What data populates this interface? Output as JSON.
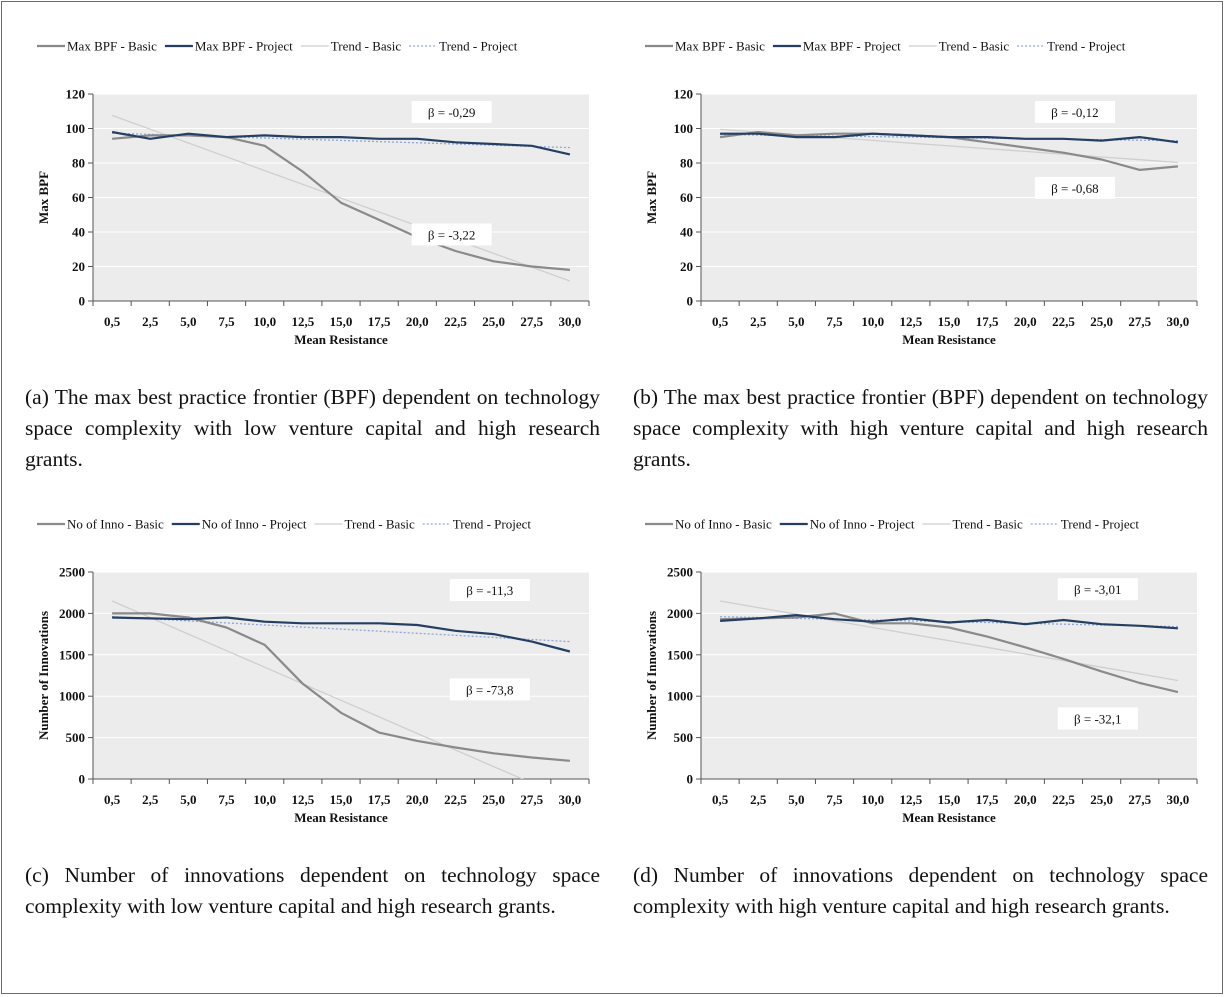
{
  "chart_data": [
    {
      "id": "a",
      "type": "line",
      "caption": "(a) The max best practice frontier (BPF) dependent on technology space complexity with low venture capital and high research grants.",
      "xlabel": "Mean Resistance",
      "ylabel": "Max BPF",
      "categories": [
        "0,5",
        "2,5",
        "5,0",
        "7,5",
        "10,0",
        "12,5",
        "15,0",
        "17,5",
        "20,0",
        "22,5",
        "25,0",
        "27,5",
        "30,0"
      ],
      "ylim": [
        0,
        120
      ],
      "yticks": [
        0,
        20,
        40,
        60,
        80,
        100,
        120
      ],
      "yticklabels": [
        "0",
        "20",
        "40",
        "60",
        "80",
        "100",
        "120"
      ],
      "grid": true,
      "legend_position": "top",
      "series": [
        {
          "name": "Max BPF - Basic",
          "style": "basic",
          "color": "#8a8a8a",
          "values": [
            94,
            96,
            96,
            95,
            90,
            75,
            57,
            47,
            37,
            29,
            23,
            20,
            18
          ]
        },
        {
          "name": "Max BPF - Project",
          "style": "project",
          "color": "#253f63",
          "values": [
            98,
            94,
            97,
            95,
            96,
            95,
            95,
            94,
            94,
            92,
            91,
            90,
            85
          ]
        },
        {
          "name": "Trend - Basic",
          "style": "trend-basic",
          "color": "#cfcfcf",
          "values": [
            107.6,
            99.6,
            91.6,
            83.6,
            75.6,
            67.6,
            59.6,
            51.6,
            43.6,
            35.6,
            27.6,
            19.6,
            11.6
          ]
        },
        {
          "name": "Trend - Project",
          "style": "trend-project",
          "color": "#8fa6d6",
          "values": [
            97.3,
            96.6,
            95.9,
            95.2,
            94.5,
            93.8,
            93.1,
            92.4,
            91.7,
            91.0,
            90.3,
            89.6,
            88.9
          ]
        }
      ],
      "annotations": [
        {
          "text": "β = -0,29",
          "at_value": 109,
          "col": 9.4
        },
        {
          "text": "β = -3,22",
          "at_value": 38,
          "col": 9.4
        }
      ]
    },
    {
      "id": "b",
      "type": "line",
      "caption": "(b) The max best practice frontier (BPF) dependent on technology space complexity with high venture capital and high research grants.",
      "xlabel": "Mean Resistance",
      "ylabel": "Max BPF",
      "categories": [
        "0,5",
        "2,5",
        "5,0",
        "7,5",
        "10,0",
        "12,5",
        "15,0",
        "17,5",
        "20,0",
        "22,5",
        "25,0",
        "27,5",
        "30,0"
      ],
      "ylim": [
        0,
        120
      ],
      "yticks": [
        0,
        20,
        40,
        60,
        80,
        100,
        120
      ],
      "yticklabels": [
        "0",
        "20",
        "40",
        "60",
        "80",
        "100",
        "120"
      ],
      "grid": true,
      "legend_position": "top",
      "series": [
        {
          "name": "Max BPF - Basic",
          "style": "basic",
          "color": "#8a8a8a",
          "values": [
            95,
            98,
            96,
            97,
            97,
            96,
            95,
            92,
            89,
            86,
            82,
            76,
            78
          ]
        },
        {
          "name": "Max BPF - Project",
          "style": "project",
          "color": "#253f63",
          "values": [
            97,
            97,
            95,
            95,
            97,
            96,
            95,
            95,
            94,
            94,
            93,
            95,
            92
          ]
        },
        {
          "name": "Trend - Basic",
          "style": "trend-basic",
          "color": "#cfcfcf",
          "values": [
            99.5,
            97.9,
            96.3,
            94.7,
            93.1,
            91.5,
            89.9,
            88.3,
            86.7,
            85.1,
            83.5,
            81.9,
            80.3
          ]
        },
        {
          "name": "Trend - Project",
          "style": "trend-project",
          "color": "#8fa6d6",
          "values": [
            96.5,
            96.2,
            95.9,
            95.6,
            95.3,
            95.0,
            94.7,
            94.4,
            94.1,
            93.8,
            93.5,
            93.2,
            92.9
          ]
        }
      ],
      "annotations": [
        {
          "text": "β = -0,12",
          "at_value": 109,
          "col": 9.8
        },
        {
          "text": "β = -0,68",
          "at_value": 65,
          "col": 9.8
        }
      ]
    },
    {
      "id": "c",
      "type": "line",
      "caption": "(c) Number of innovations dependent on technology space complexity with low venture capital and high research grants.",
      "xlabel": "Mean Resistance",
      "ylabel": "Number of Innovations",
      "categories": [
        "0,5",
        "2,5",
        "5,0",
        "7,5",
        "10,0",
        "12,5",
        "15,0",
        "17,5",
        "20,0",
        "22,5",
        "25,0",
        "27,5",
        "30,0"
      ],
      "ylim": [
        0,
        2500
      ],
      "yticks": [
        0,
        500,
        1000,
        1500,
        2000,
        2500
      ],
      "yticklabels": [
        "0",
        "500",
        "1000",
        "1500",
        "2000",
        "2500"
      ],
      "grid": true,
      "legend_position": "top",
      "series": [
        {
          "name": "No of Inno - Basic",
          "style": "basic",
          "color": "#8a8a8a",
          "values": [
            2000,
            2000,
            1950,
            1830,
            1620,
            1150,
            800,
            560,
            460,
            380,
            310,
            260,
            220
          ]
        },
        {
          "name": "No of Inno - Project",
          "style": "project",
          "color": "#253f63",
          "values": [
            1950,
            1940,
            1930,
            1950,
            1900,
            1880,
            1880,
            1880,
            1860,
            1790,
            1750,
            1660,
            1540
          ]
        },
        {
          "name": "Trend - Basic",
          "style": "trend-basic",
          "color": "#cfcfcf",
          "values": [
            2150,
            1950,
            1750,
            1550,
            1350,
            1150,
            950,
            750,
            550,
            350,
            150,
            -50,
            -250
          ]
        },
        {
          "name": "Trend - Project",
          "style": "trend-project",
          "color": "#8fa6d6",
          "values": [
            1960,
            1935,
            1910,
            1885,
            1860,
            1835,
            1810,
            1785,
            1760,
            1735,
            1710,
            1685,
            1660
          ]
        }
      ],
      "annotations": [
        {
          "text": "β = -11,3",
          "at_value": 2270,
          "col": 10.4
        },
        {
          "text": "β = -73,8",
          "at_value": 1070,
          "col": 10.4
        }
      ]
    },
    {
      "id": "d",
      "type": "line",
      "caption": "(d) Number of innovations dependent on technology space complexity with high venture capital and high research grants.",
      "xlabel": "Mean Resistance",
      "ylabel": "Number of Innovations",
      "categories": [
        "0,5",
        "2,5",
        "5,0",
        "7,5",
        "10,0",
        "12,5",
        "15,0",
        "17,5",
        "20,0",
        "22,5",
        "25,0",
        "27,5",
        "30,0"
      ],
      "ylim": [
        0,
        2500
      ],
      "yticks": [
        0,
        500,
        1000,
        1500,
        2000,
        2500
      ],
      "yticklabels": [
        "0",
        "500",
        "1000",
        "1500",
        "2000",
        "2500"
      ],
      "grid": true,
      "legend_position": "top",
      "series": [
        {
          "name": "No of Inno - Basic",
          "style": "basic",
          "color": "#8a8a8a",
          "values": [
            1930,
            1940,
            1950,
            2000,
            1880,
            1880,
            1830,
            1720,
            1590,
            1450,
            1300,
            1160,
            1050
          ]
        },
        {
          "name": "No of Inno - Project",
          "style": "project",
          "color": "#253f63",
          "values": [
            1910,
            1940,
            1980,
            1930,
            1900,
            1940,
            1890,
            1920,
            1870,
            1920,
            1870,
            1850,
            1820
          ]
        },
        {
          "name": "Trend - Basic",
          "style": "trend-basic",
          "color": "#cfcfcf",
          "values": [
            2150,
            2070,
            1990,
            1910,
            1830,
            1750,
            1670,
            1590,
            1510,
            1430,
            1350,
            1270,
            1190
          ]
        },
        {
          "name": "Trend - Project",
          "style": "trend-project",
          "color": "#8fa6d6",
          "values": [
            1960,
            1950,
            1940,
            1930,
            1920,
            1910,
            1900,
            1890,
            1880,
            1870,
            1860,
            1850,
            1840
          ]
        }
      ],
      "annotations": [
        {
          "text": "β = -3,01",
          "at_value": 2280,
          "col": 10.4
        },
        {
          "text": "β = -32,1",
          "at_value": 720,
          "col": 10.4
        }
      ]
    }
  ]
}
